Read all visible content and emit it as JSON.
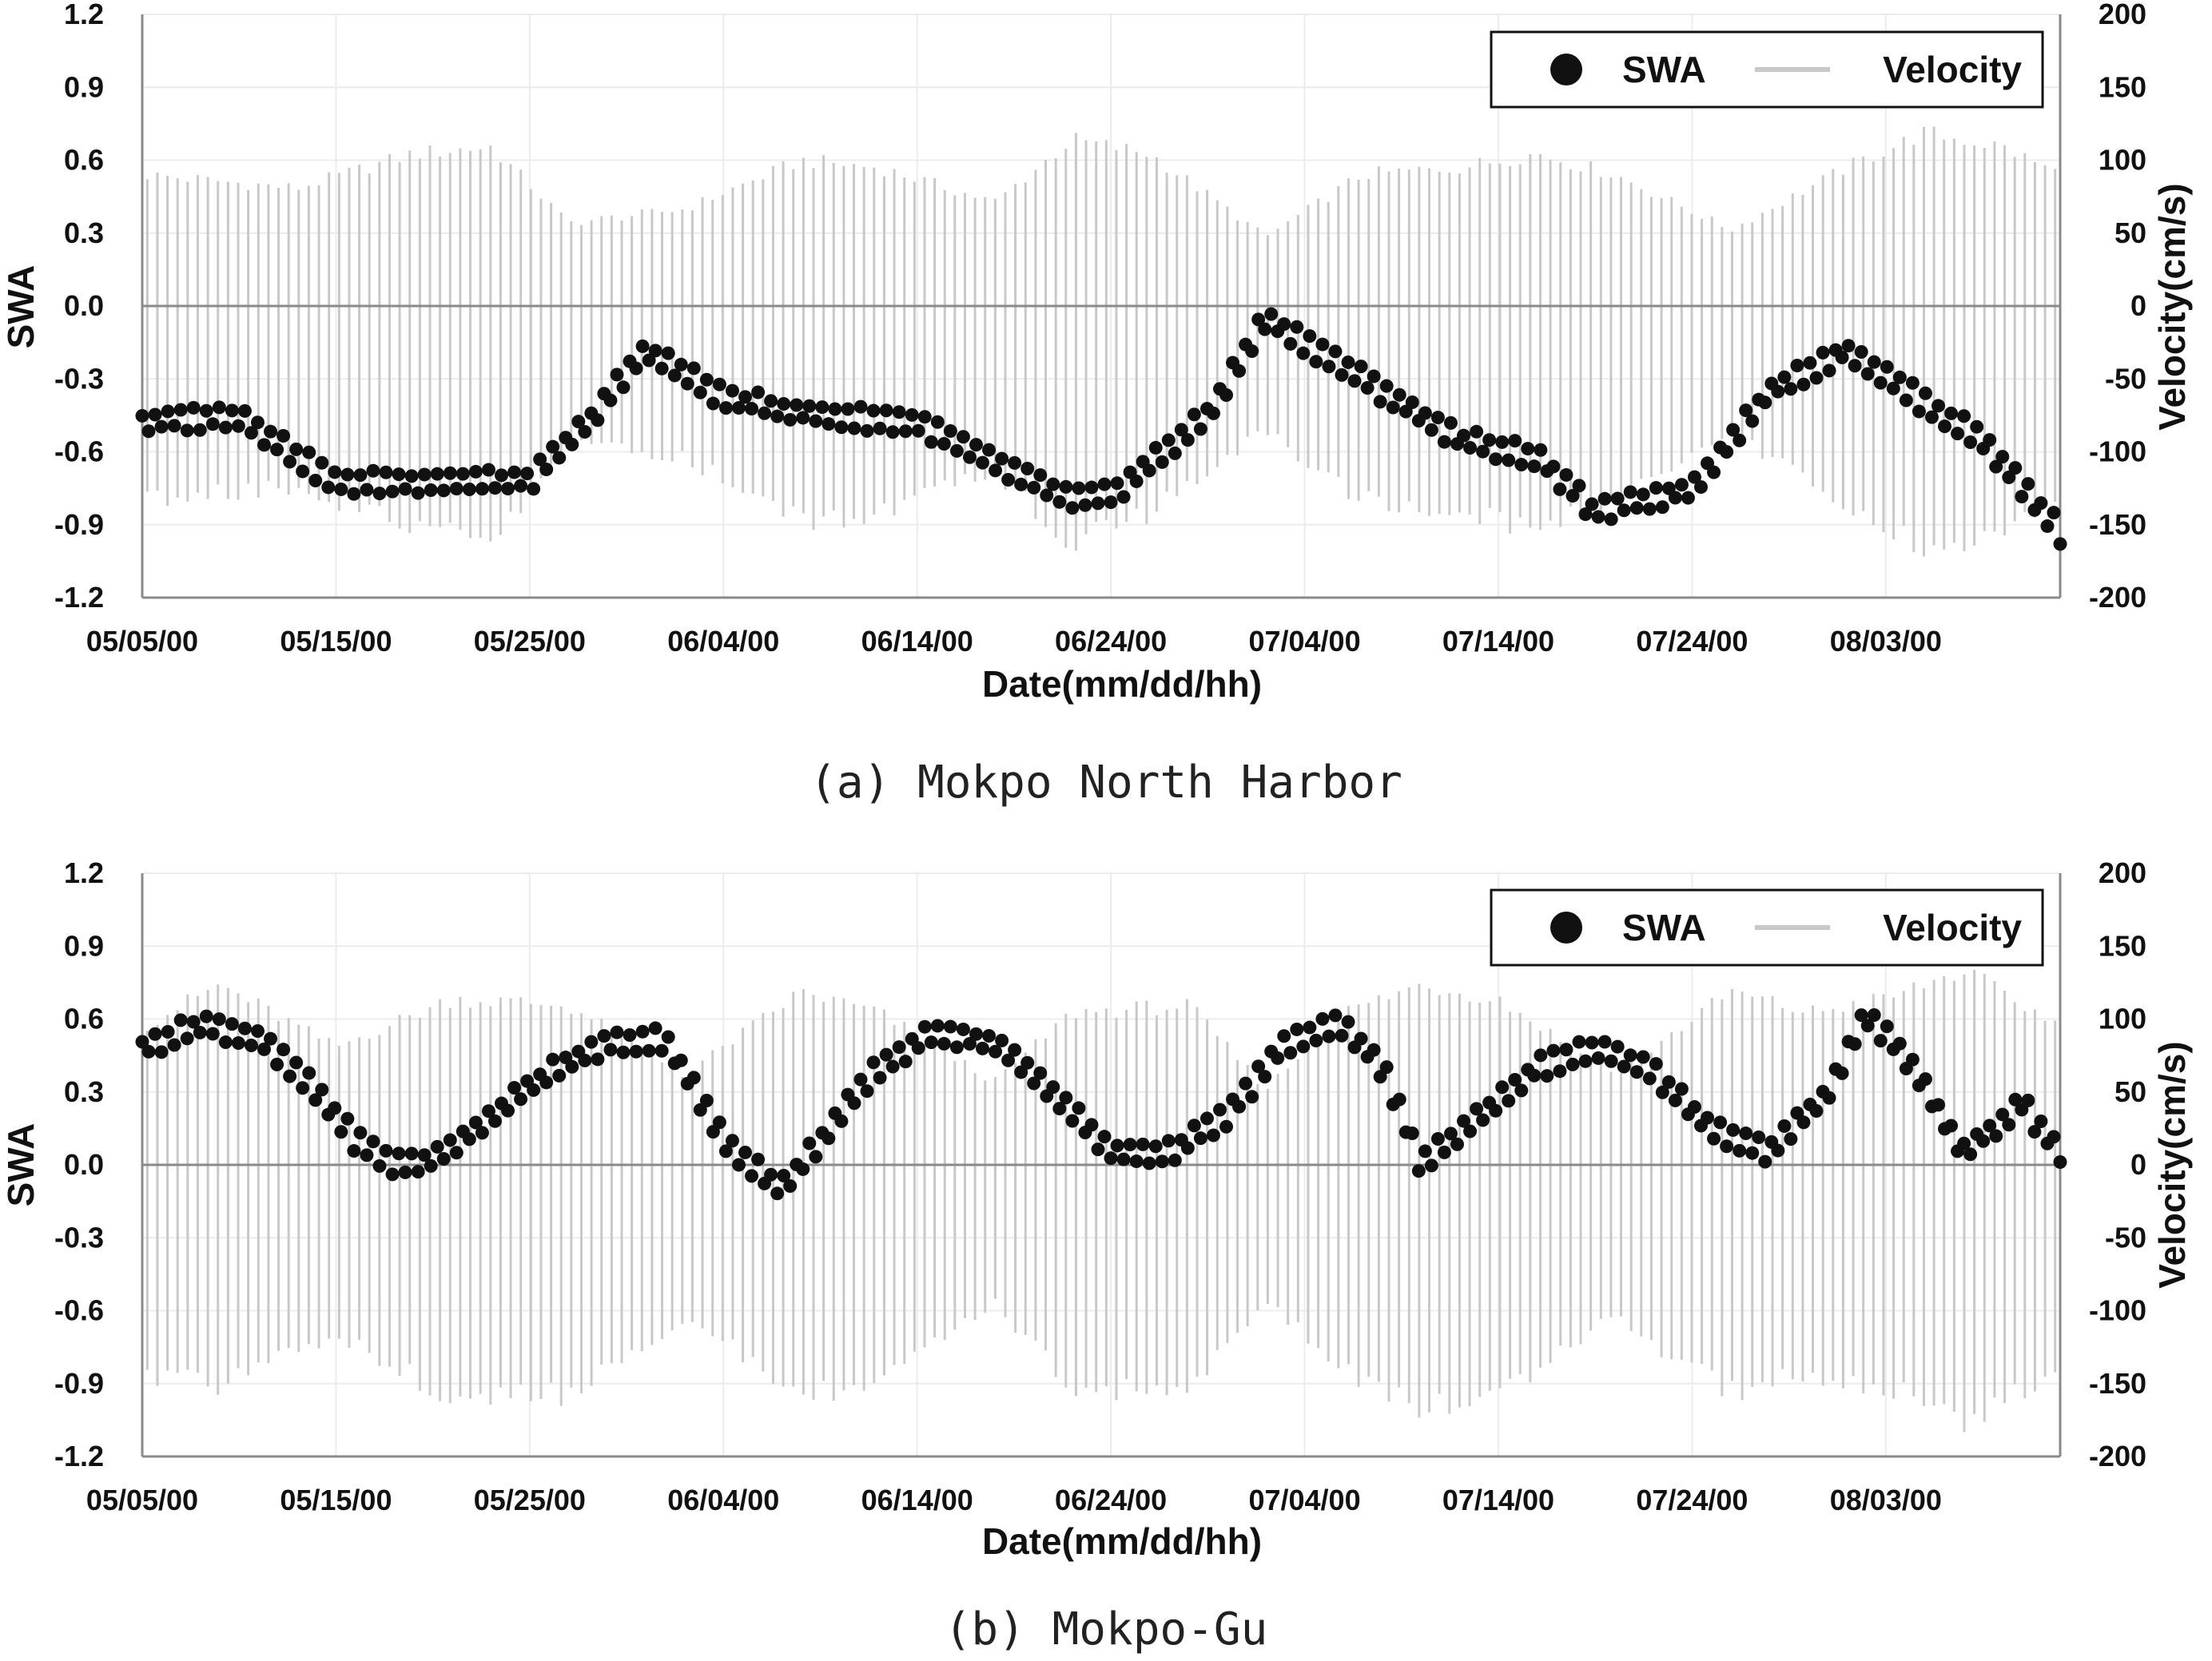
{
  "chart_data": [
    {
      "type": "scatter",
      "caption": "(a) Mokpo North Harbor",
      "xlabel": "Date(mm/dd/hh)",
      "ylabel": "SWA",
      "y2label": "Velocity(cm/s)",
      "x_ticks": [
        "05/05/00",
        "05/15/00",
        "05/25/00",
        "06/04/00",
        "06/14/00",
        "06/24/00",
        "07/04/00",
        "07/14/00",
        "07/24/00",
        "08/03/00"
      ],
      "x_range_days": [
        0,
        99
      ],
      "ylim": [
        -1.2,
        1.2
      ],
      "y_ticks": [
        "1.2",
        "0.9",
        "0.6",
        "0.3",
        "0.0",
        "-0.3",
        "-0.6",
        "-0.9",
        "-1.2"
      ],
      "y2lim": [
        -200,
        200
      ],
      "y2_ticks": [
        "200",
        "150",
        "100",
        "50",
        "0",
        "-50",
        "-100",
        "-150",
        "-200"
      ],
      "grid": true,
      "legend": {
        "position": "top-right",
        "entries": [
          "SWA",
          "Velocity"
        ]
      },
      "series": [
        {
          "name": "SWA",
          "marker": "circle",
          "color": "#111111",
          "x_days": [
            0,
            5,
            10,
            15,
            20,
            23,
            26,
            30,
            35,
            40,
            44,
            48,
            50,
            55,
            58,
            62,
            68,
            72,
            75,
            80,
            84,
            88,
            92,
            95,
            99
          ],
          "y": [
            -0.48,
            -0.45,
            -0.73,
            -0.72,
            -0.72,
            -0.48,
            -0.18,
            -0.38,
            -0.45,
            -0.48,
            -0.65,
            -0.8,
            -0.78,
            -0.45,
            -0.05,
            -0.25,
            -0.55,
            -0.62,
            -0.85,
            -0.75,
            -0.35,
            -0.18,
            -0.4,
            -0.55,
            -0.93
          ]
        },
        {
          "name": "Velocity",
          "type": "line",
          "color": "#c8c8c8",
          "envelope_x_days": [
            0,
            8,
            14,
            18,
            22,
            28,
            34,
            38,
            44,
            48,
            52,
            58,
            63,
            68,
            72,
            76,
            82,
            88,
            92,
            96,
            99
          ],
          "envelope_max": [
            95,
            85,
            110,
            115,
            60,
            70,
            105,
            100,
            75,
            120,
            110,
            50,
            95,
            100,
            110,
            95,
            55,
            100,
            125,
            115,
            95
          ],
          "envelope_min": [
            -140,
            -130,
            -160,
            -170,
            -100,
            -110,
            -155,
            -150,
            -120,
            -170,
            -150,
            -90,
            -140,
            -150,
            -160,
            -140,
            -90,
            -145,
            -175,
            -165,
            -140
          ]
        }
      ]
    },
    {
      "type": "scatter",
      "caption": "(b) Mokpo-Gu",
      "xlabel": "Date(mm/dd/hh)",
      "ylabel": "SWA",
      "y2label": "Velocity(cm/s)",
      "x_ticks": [
        "05/05/00",
        "05/15/00",
        "05/25/00",
        "06/04/00",
        "06/14/00",
        "06/24/00",
        "07/04/00",
        "07/14/00",
        "07/24/00",
        "08/03/00"
      ],
      "x_range_days": [
        0,
        99
      ],
      "ylim": [
        -1.2,
        1.2
      ],
      "y_ticks": [
        "1.2",
        "0.9",
        "0.6",
        "0.3",
        "0.0",
        "-0.3",
        "-0.6",
        "-0.9",
        "-1.2"
      ],
      "y2lim": [
        -200,
        200
      ],
      "y2_ticks": [
        "200",
        "150",
        "100",
        "50",
        "0",
        "-50",
        "-100",
        "-150",
        "-200"
      ],
      "grid": true,
      "legend": {
        "position": "top-right",
        "entries": [
          "SWA",
          "Velocity"
        ]
      },
      "series": [
        {
          "name": "SWA",
          "marker": "circle",
          "color": "#111111",
          "x_days": [
            0,
            3,
            6,
            9,
            11,
            13,
            15,
            18,
            21,
            24,
            27,
            30,
            33,
            35,
            38,
            41,
            44,
            47,
            50,
            53,
            56,
            59,
            62,
            64,
            66,
            69,
            72,
            75,
            78,
            81,
            84,
            87,
            89,
            91,
            94,
            97,
            99
          ],
          "y": [
            0.48,
            0.58,
            0.52,
            0.3,
            0.1,
            0.0,
            0.02,
            0.2,
            0.38,
            0.5,
            0.52,
            0.1,
            -0.1,
            0.1,
            0.4,
            0.55,
            0.5,
            0.3,
            0.05,
            0.05,
            0.2,
            0.5,
            0.58,
            0.4,
            0.0,
            0.2,
            0.4,
            0.48,
            0.38,
            0.15,
            0.05,
            0.3,
            0.62,
            0.45,
            0.05,
            0.25,
            0.05
          ]
        },
        {
          "name": "Velocity",
          "type": "line",
          "color": "#c8c8c8",
          "envelope_x_days": [
            0,
            4,
            10,
            16,
            22,
            28,
            34,
            38,
            44,
            48,
            54,
            58,
            62,
            66,
            70,
            76,
            82,
            86,
            90,
            94,
            99
          ],
          "envelope_max": [
            100,
            130,
            85,
            120,
            115,
            65,
            125,
            110,
            60,
            110,
            115,
            55,
            110,
            130,
            120,
            65,
            125,
            110,
            120,
            140,
            100
          ],
          "envelope_min": [
            -150,
            -160,
            -120,
            -170,
            -165,
            -110,
            -165,
            -160,
            -100,
            -160,
            -165,
            -95,
            -150,
            -175,
            -165,
            -110,
            -165,
            -150,
            -160,
            -185,
            -150
          ]
        }
      ]
    }
  ]
}
